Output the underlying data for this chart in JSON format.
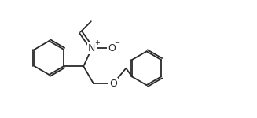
{
  "bg_color": "#ffffff",
  "line_color": "#2a2a2a",
  "line_width": 1.3,
  "font_size_label": 8.5,
  "N_label": "N",
  "O_label": "O",
  "N_charge": "+",
  "O_charge": "−",
  "ether_O": "O",
  "figsize": [
    3.27,
    1.5
  ],
  "dpi": 100,
  "xlim": [
    0,
    10.5
  ],
  "ylim": [
    0,
    5.0
  ]
}
